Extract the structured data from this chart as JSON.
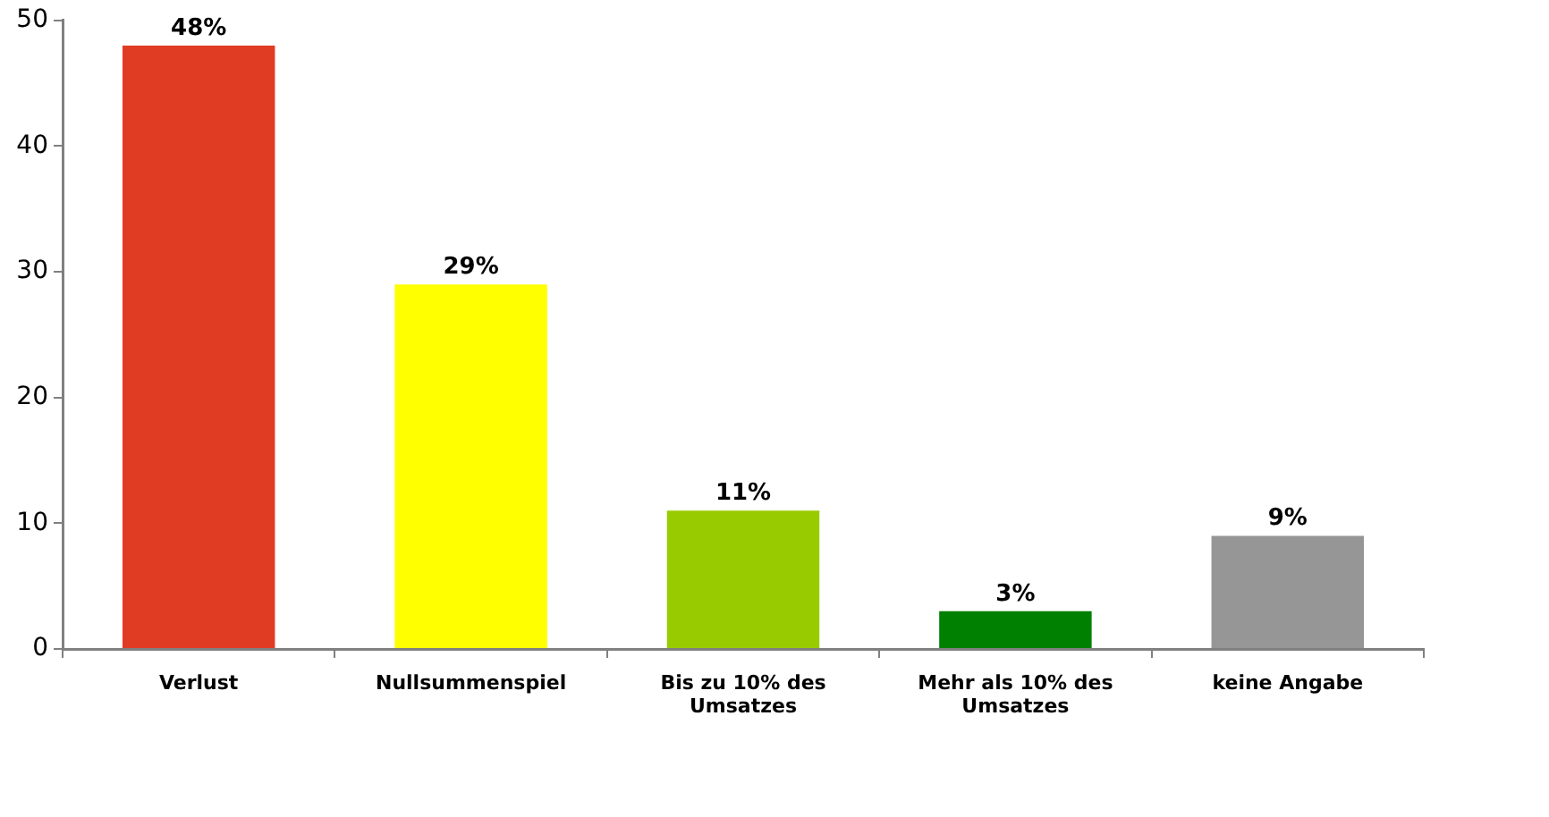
{
  "chart_data": {
    "type": "bar",
    "categories": [
      "Verlust",
      "Nullsummenspiel",
      "Bis zu 10% des Umsatzes",
      "Mehr als 10% des Umsatzes",
      "keine Angabe"
    ],
    "values": [
      48,
      29,
      11,
      3,
      9
    ],
    "colors": [
      "#e03c23",
      "#ffff00",
      "#99cc00",
      "#008000",
      "#969696"
    ],
    "value_labels": [
      "48%",
      "29%",
      "11%",
      "3%",
      "9%"
    ],
    "ylim": [
      0,
      50
    ],
    "yticks": [
      0,
      10,
      20,
      30,
      40,
      50
    ]
  }
}
